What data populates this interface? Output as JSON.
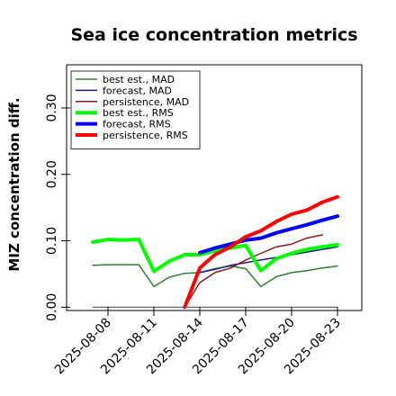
{
  "chart_data": {
    "type": "line",
    "title": "Sea ice concentration metrics",
    "xlabel": "",
    "ylabel": "MIZ concentration diff.",
    "xlim": [
      0,
      11
    ],
    "ylim": [
      -0.005,
      0.365
    ],
    "x_ticks": [
      {
        "x": 1,
        "label": "2025-08-08",
        "color": "#000000"
      },
      {
        "x": 2,
        "label": "2025-08-11",
        "color": "#000000"
      },
      {
        "x": 3,
        "label": "2025-08-14",
        "color": "#2e8b2e"
      },
      {
        "x": 4,
        "label": "2025-08-17",
        "color": "#000000"
      },
      {
        "x": 5,
        "label": "2025-08-20",
        "color": "#000000"
      },
      {
        "x": 6,
        "label": "2025-08-23",
        "color": "#000000"
      }
    ],
    "y_ticks": [
      0.0,
      0.1,
      0.2,
      0.3
    ],
    "y_tick_labels": [
      "0.00",
      "0.10",
      "0.20",
      "0.30"
    ],
    "grid": false,
    "legend_position": "top-left",
    "series": [
      {
        "name": "best est., MAD",
        "color": "#2e7d32",
        "width": 1.5,
        "points": [
          [
            0.67,
            0.063
          ],
          [
            1.0,
            0.064
          ],
          [
            1.33,
            0.064
          ],
          [
            1.67,
            0.064
          ],
          [
            2.0,
            0.031
          ],
          [
            2.33,
            0.045
          ],
          [
            2.67,
            0.051
          ],
          [
            3.0,
            0.052
          ],
          [
            3.33,
            0.058
          ],
          [
            3.67,
            0.062
          ],
          [
            4.0,
            0.058
          ],
          [
            4.33,
            0.031
          ],
          [
            4.67,
            0.046
          ],
          [
            5.0,
            0.052
          ],
          [
            5.33,
            0.055
          ],
          [
            5.67,
            0.059
          ],
          [
            6.0,
            0.062
          ]
        ]
      },
      {
        "name": "forecast,  MAD",
        "color": "#1a1a8c",
        "width": 1.5,
        "points": [
          [
            3.0,
            0.052
          ],
          [
            3.33,
            0.057
          ],
          [
            3.67,
            0.063
          ],
          [
            4.0,
            0.067
          ],
          [
            4.33,
            0.071
          ],
          [
            4.67,
            0.075
          ],
          [
            5.0,
            0.079
          ],
          [
            5.33,
            0.083
          ],
          [
            5.67,
            0.087
          ],
          [
            6.0,
            0.091
          ]
        ]
      },
      {
        "name": "persistence, MAD",
        "color": "#8b1a1a",
        "width": 1.5,
        "points": [
          [
            2.67,
            0.0
          ],
          [
            3.0,
            0.037
          ],
          [
            3.33,
            0.052
          ],
          [
            3.67,
            0.059
          ],
          [
            4.0,
            0.071
          ],
          [
            4.33,
            0.081
          ],
          [
            4.67,
            0.091
          ],
          [
            5.0,
            0.095
          ],
          [
            5.33,
            0.104
          ],
          [
            5.67,
            0.109
          ]
        ]
      },
      {
        "name": "best est., RMS",
        "color": "#00ff00",
        "width": 4,
        "points": [
          [
            0.67,
            0.098
          ],
          [
            1.0,
            0.102
          ],
          [
            1.33,
            0.101
          ],
          [
            1.67,
            0.102
          ],
          [
            2.0,
            0.054
          ],
          [
            2.33,
            0.069
          ],
          [
            2.67,
            0.079
          ],
          [
            3.0,
            0.079
          ],
          [
            3.33,
            0.085
          ],
          [
            3.67,
            0.089
          ],
          [
            4.0,
            0.093
          ],
          [
            4.33,
            0.055
          ],
          [
            4.67,
            0.073
          ],
          [
            5.0,
            0.081
          ],
          [
            5.33,
            0.087
          ],
          [
            5.67,
            0.091
          ],
          [
            6.0,
            0.094
          ]
        ]
      },
      {
        "name": "forecast,  RMS",
        "color": "#0000ff",
        "width": 4,
        "points": [
          [
            3.0,
            0.082
          ],
          [
            3.33,
            0.089
          ],
          [
            3.67,
            0.095
          ],
          [
            4.0,
            0.101
          ],
          [
            4.33,
            0.104
          ],
          [
            4.67,
            0.112
          ],
          [
            5.0,
            0.118
          ],
          [
            5.33,
            0.124
          ],
          [
            5.67,
            0.131
          ],
          [
            6.0,
            0.137
          ]
        ]
      },
      {
        "name": "persistence, RMS",
        "color": "#ff0000",
        "width": 4,
        "points": [
          [
            2.67,
            0.0
          ],
          [
            3.0,
            0.059
          ],
          [
            3.33,
            0.079
          ],
          [
            3.67,
            0.091
          ],
          [
            4.0,
            0.106
          ],
          [
            4.33,
            0.115
          ],
          [
            4.67,
            0.129
          ],
          [
            5.0,
            0.14
          ],
          [
            5.33,
            0.146
          ],
          [
            5.67,
            0.158
          ],
          [
            6.0,
            0.166
          ]
        ]
      },
      {
        "name": "",
        "color": "#555555",
        "width": 1.2,
        "points": [
          [
            0.67,
            0.0
          ],
          [
            6.0,
            0.0
          ]
        ]
      }
    ]
  }
}
